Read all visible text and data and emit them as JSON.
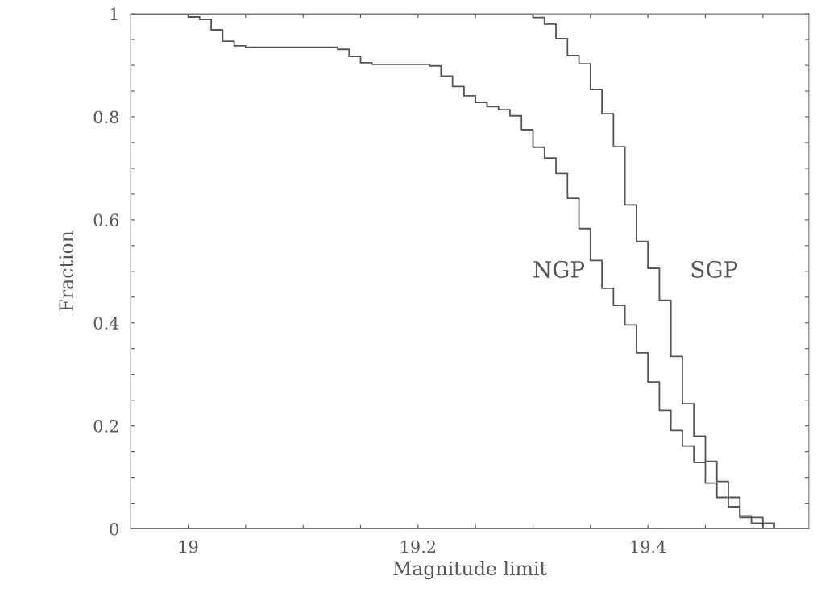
{
  "chart_data": {
    "type": "step",
    "xlabel": "Magnitude limit",
    "ylabel": "Fraction",
    "xlim": [
      18.95,
      19.54
    ],
    "ylim": [
      0,
      1
    ],
    "xticks": [
      19,
      {
        "value": 19.05,
        "label": null
      },
      {
        "value": 19.1,
        "label": null
      },
      {
        "value": 19.15,
        "label": null
      },
      19.2,
      {
        "value": 19.25,
        "label": null
      },
      {
        "value": 19.3,
        "label": null
      },
      {
        "value": 19.35,
        "label": null
      },
      19.4,
      {
        "value": 19.45,
        "label": null
      },
      {
        "value": 19.5,
        "label": null
      }
    ],
    "yticks": [
      0,
      {
        "value": 0.05,
        "label": null
      },
      {
        "value": 0.1,
        "label": null
      },
      {
        "value": 0.15,
        "label": null
      },
      0.2,
      {
        "value": 0.25,
        "label": null
      },
      {
        "value": 0.3,
        "label": null
      },
      {
        "value": 0.35,
        "label": null
      },
      0.4,
      {
        "value": 0.45,
        "label": null
      },
      {
        "value": 0.5,
        "label": null
      },
      {
        "value": 0.55,
        "label": null
      },
      0.6,
      {
        "value": 0.65,
        "label": null
      },
      {
        "value": 0.7,
        "label": null
      },
      {
        "value": 0.75,
        "label": null
      },
      0.8,
      {
        "value": 0.85,
        "label": null
      },
      {
        "value": 0.9,
        "label": null
      },
      {
        "value": 0.95,
        "label": null
      },
      1
    ],
    "grid": false,
    "legend": false,
    "marker": "none",
    "line_style": "solid",
    "series": [
      {
        "name": "NGP",
        "color": "#555555",
        "x": [
          18.95,
          19.0,
          19.01,
          19.02,
          19.03,
          19.04,
          19.05,
          19.13,
          19.14,
          19.15,
          19.16,
          19.21,
          19.22,
          19.23,
          19.24,
          19.25,
          19.26,
          19.27,
          19.28,
          19.29,
          19.3,
          19.31,
          19.32,
          19.33,
          19.34,
          19.35,
          19.36,
          19.37,
          19.38,
          19.39,
          19.4,
          19.41,
          19.42,
          19.43,
          19.44,
          19.45,
          19.46,
          19.47,
          19.48,
          19.49,
          19.5
        ],
        "values": [
          1,
          0.994,
          0.989,
          0.969,
          0.947,
          0.938,
          0.935,
          0.931,
          0.917,
          0.905,
          0.902,
          0.899,
          0.879,
          0.859,
          0.841,
          0.828,
          0.82,
          0.814,
          0.802,
          0.775,
          0.741,
          0.72,
          0.69,
          0.642,
          0.583,
          0.521,
          0.467,
          0.434,
          0.396,
          0.342,
          0.285,
          0.23,
          0.191,
          0.161,
          0.129,
          0.089,
          0.061,
          0.043,
          0.025,
          0.011,
          0
        ]
      },
      {
        "name": "SGP",
        "color": "#555555",
        "x": [
          18.95,
          19.3,
          19.31,
          19.32,
          19.33,
          19.34,
          19.35,
          19.36,
          19.37,
          19.38,
          19.39,
          19.4,
          19.41,
          19.42,
          19.43,
          19.44,
          19.45,
          19.46,
          19.47,
          19.48,
          19.5,
          19.51
        ],
        "values": [
          1,
          0.993,
          0.98,
          0.952,
          0.919,
          0.903,
          0.853,
          0.806,
          0.742,
          0.629,
          0.558,
          0.506,
          0.444,
          0.335,
          0.243,
          0.18,
          0.131,
          0.092,
          0.061,
          0.022,
          0.011,
          0
        ]
      }
    ]
  }
}
